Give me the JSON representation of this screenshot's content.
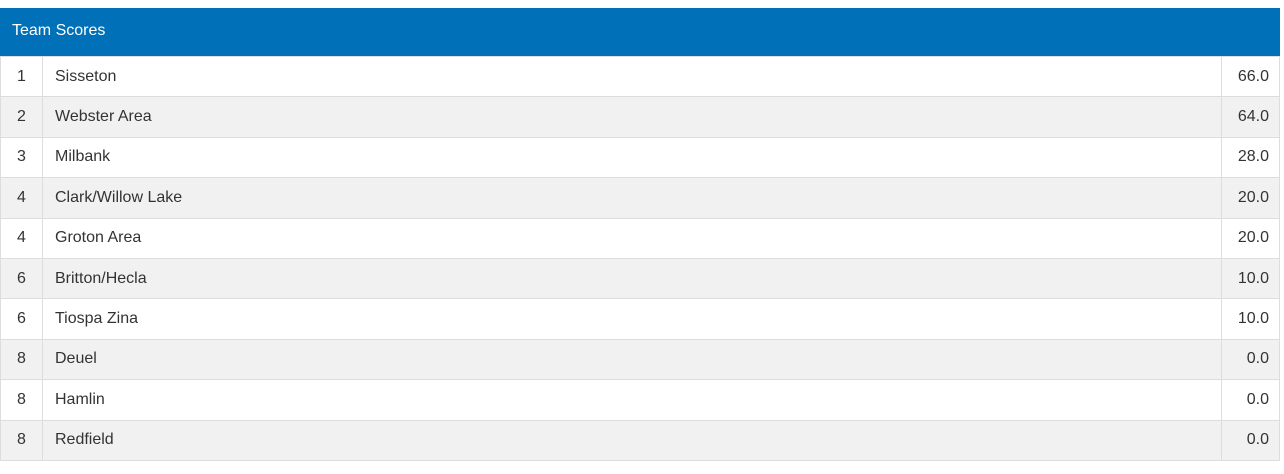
{
  "table": {
    "title": "Team Scores",
    "rows": [
      [
        "1",
        "Sisseton",
        "66.0"
      ],
      [
        "2",
        "Webster Area",
        "64.0"
      ],
      [
        "3",
        "Milbank",
        "28.0"
      ],
      [
        "4",
        "Clark/Willow Lake",
        "20.0"
      ],
      [
        "4",
        "Groton Area",
        "20.0"
      ],
      [
        "6",
        "Britton/Hecla",
        "10.0"
      ],
      [
        "6",
        "Tiospa Zina",
        "10.0"
      ],
      [
        "8",
        "Deuel",
        "0.0"
      ],
      [
        "8",
        "Hamlin",
        "0.0"
      ],
      [
        "8",
        "Redfield",
        "0.0"
      ]
    ]
  }
}
